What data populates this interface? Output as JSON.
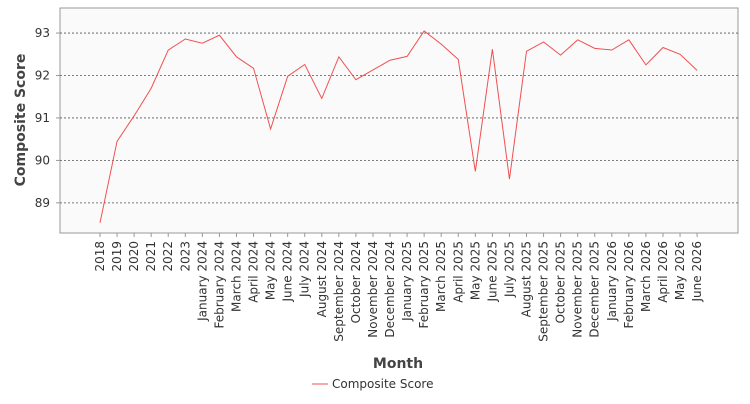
{
  "chart_data": {
    "type": "line",
    "x_label": "Month",
    "y_label": "Composite Score",
    "categories": [
      "2018",
      "2019",
      "2020",
      "2021",
      "2022",
      "2023",
      "January 2024",
      "February 2024",
      "March 2024",
      "April 2024",
      "May 2024",
      "June 2024",
      "July 2024",
      "August 2024",
      "September 2024",
      "October 2024",
      "November 2024",
      "December 2024",
      "January 2025",
      "February 2025",
      "March 2025",
      "April 2025",
      "May 2025",
      "June 2025",
      "July 2025",
      "August 2025",
      "September 2025",
      "October 2025",
      "November 2025",
      "December 2025",
      "January 2026",
      "February 2026",
      "March 2026",
      "April 2026",
      "May 2026",
      "June 2026"
    ],
    "series": [
      {
        "name": "Composite Score",
        "color": "#f05050",
        "values": [
          88.53,
          90.45,
          91.05,
          91.7,
          92.6,
          92.86,
          92.76,
          92.95,
          92.44,
          92.17,
          90.74,
          91.98,
          92.26,
          91.46,
          92.44,
          91.9,
          92.13,
          92.36,
          92.45,
          93.05,
          92.74,
          92.38,
          89.74,
          92.62,
          89.56,
          92.57,
          92.79,
          92.48,
          92.84,
          92.64,
          92.6,
          92.84,
          92.25,
          92.66,
          92.5,
          92.12
        ]
      }
    ],
    "ylim": [
      88.29,
      93.59
    ],
    "yticks": [
      89,
      90,
      91,
      92,
      93
    ],
    "grid": true,
    "legend": "bottom"
  }
}
